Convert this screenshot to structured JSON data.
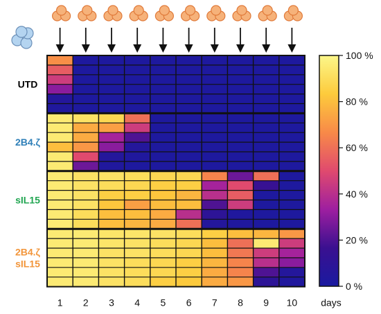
{
  "chart_data": {
    "type": "heatmap",
    "x": [
      "1",
      "2",
      "3",
      "4",
      "5",
      "6",
      "7",
      "8",
      "9",
      "10"
    ],
    "xunit": "days",
    "groups": [
      {
        "name": "UTD",
        "label_lines": [
          "UTD"
        ],
        "color": "#000000",
        "rows": [
          [
            0.68,
            0.02,
            0.02,
            0.02,
            0.02,
            0.02,
            0.02,
            0.02,
            0.02,
            0.02
          ],
          [
            0.55,
            0.02,
            0.02,
            0.02,
            0.02,
            0.02,
            0.02,
            0.02,
            0.02,
            0.02
          ],
          [
            0.45,
            0.02,
            0.02,
            0.02,
            0.02,
            0.02,
            0.02,
            0.02,
            0.02,
            0.02
          ],
          [
            0.3,
            0.02,
            0.02,
            0.02,
            0.02,
            0.02,
            0.02,
            0.02,
            0.02,
            0.02
          ],
          [
            0.05,
            0.02,
            0.02,
            0.02,
            0.02,
            0.02,
            0.02,
            0.02,
            0.02,
            0.02
          ],
          [
            0.03,
            0.02,
            0.02,
            0.02,
            0.02,
            0.02,
            0.02,
            0.02,
            0.02,
            0.02
          ]
        ]
      },
      {
        "name": "2B4.ζ",
        "label_lines": [
          "2B4.ζ"
        ],
        "color": "#2e7fb8",
        "rows": [
          [
            0.95,
            0.92,
            0.88,
            0.6,
            0.02,
            0.02,
            0.02,
            0.02,
            0.02,
            0.02
          ],
          [
            0.95,
            0.75,
            0.72,
            0.45,
            0.02,
            0.02,
            0.02,
            0.02,
            0.02,
            0.02
          ],
          [
            0.95,
            0.75,
            0.35,
            0.2,
            0.02,
            0.02,
            0.02,
            0.02,
            0.02,
            0.02
          ],
          [
            0.8,
            0.7,
            0.3,
            0.05,
            0.02,
            0.02,
            0.02,
            0.02,
            0.02,
            0.02
          ],
          [
            0.95,
            0.5,
            0.05,
            0.03,
            0.02,
            0.02,
            0.02,
            0.02,
            0.02,
            0.02
          ],
          [
            0.95,
            0.25,
            0.03,
            0.02,
            0.02,
            0.02,
            0.02,
            0.02,
            0.02,
            0.02
          ]
        ]
      },
      {
        "name": "sIL15",
        "label_lines": [
          "sIL15"
        ],
        "color": "#22a652",
        "rows": [
          [
            0.95,
            0.92,
            0.92,
            0.9,
            0.88,
            0.88,
            0.65,
            0.25,
            0.6,
            0.02
          ],
          [
            0.95,
            0.92,
            0.9,
            0.88,
            0.85,
            0.85,
            0.35,
            0.5,
            0.15,
            0.02
          ],
          [
            0.95,
            0.92,
            0.85,
            0.85,
            0.82,
            0.78,
            0.4,
            0.55,
            0.02,
            0.02
          ],
          [
            0.95,
            0.92,
            0.82,
            0.72,
            0.8,
            0.8,
            0.2,
            0.45,
            0.02,
            0.02
          ],
          [
            0.95,
            0.9,
            0.8,
            0.8,
            0.75,
            0.4,
            0.1,
            0.03,
            0.02,
            0.02
          ],
          [
            0.95,
            0.9,
            0.8,
            0.78,
            0.75,
            0.6,
            0.05,
            0.03,
            0.02,
            0.02
          ]
        ]
      },
      {
        "name": "2B4.ζ sIL15",
        "label_lines": [
          "2B4.ζ",
          "sIL15"
        ],
        "color": "#f2953a",
        "rows": [
          [
            0.95,
            0.95,
            0.93,
            0.93,
            0.92,
            0.9,
            0.85,
            0.8,
            0.78,
            0.7
          ],
          [
            0.95,
            0.95,
            0.93,
            0.92,
            0.9,
            0.88,
            0.8,
            0.6,
            0.95,
            0.45
          ],
          [
            0.95,
            0.95,
            0.92,
            0.92,
            0.9,
            0.88,
            0.8,
            0.62,
            0.45,
            0.35
          ],
          [
            0.95,
            0.95,
            0.92,
            0.9,
            0.88,
            0.85,
            0.78,
            0.65,
            0.4,
            0.3
          ],
          [
            0.95,
            0.95,
            0.92,
            0.9,
            0.88,
            0.85,
            0.75,
            0.65,
            0.2,
            0.05
          ],
          [
            0.95,
            0.95,
            0.92,
            0.9,
            0.85,
            0.83,
            0.75,
            0.7,
            0.1,
            0.03
          ]
        ]
      }
    ],
    "colorbar": {
      "min": 0,
      "max": 1,
      "ticks": [
        {
          "value": 0,
          "label": "0 %"
        },
        {
          "value": 0.2,
          "label": "20 %"
        },
        {
          "value": 0.4,
          "label": "40 %"
        },
        {
          "value": 0.6,
          "label": "60 %"
        },
        {
          "value": 0.8,
          "label": "80 %"
        },
        {
          "value": 1.0,
          "label": "100 %"
        }
      ],
      "stops": [
        "#1a1aa0",
        "#3a1090",
        "#9e1fa0",
        "#e04a6e",
        "#f88a48",
        "#fdcb3c",
        "#fbf78a"
      ]
    },
    "icons": {
      "top_icon": "cell-cluster-icon",
      "top_color": "#f6b27a",
      "side_icon": "cell-cluster-icon",
      "side_color": "#b4d4f0"
    }
  }
}
